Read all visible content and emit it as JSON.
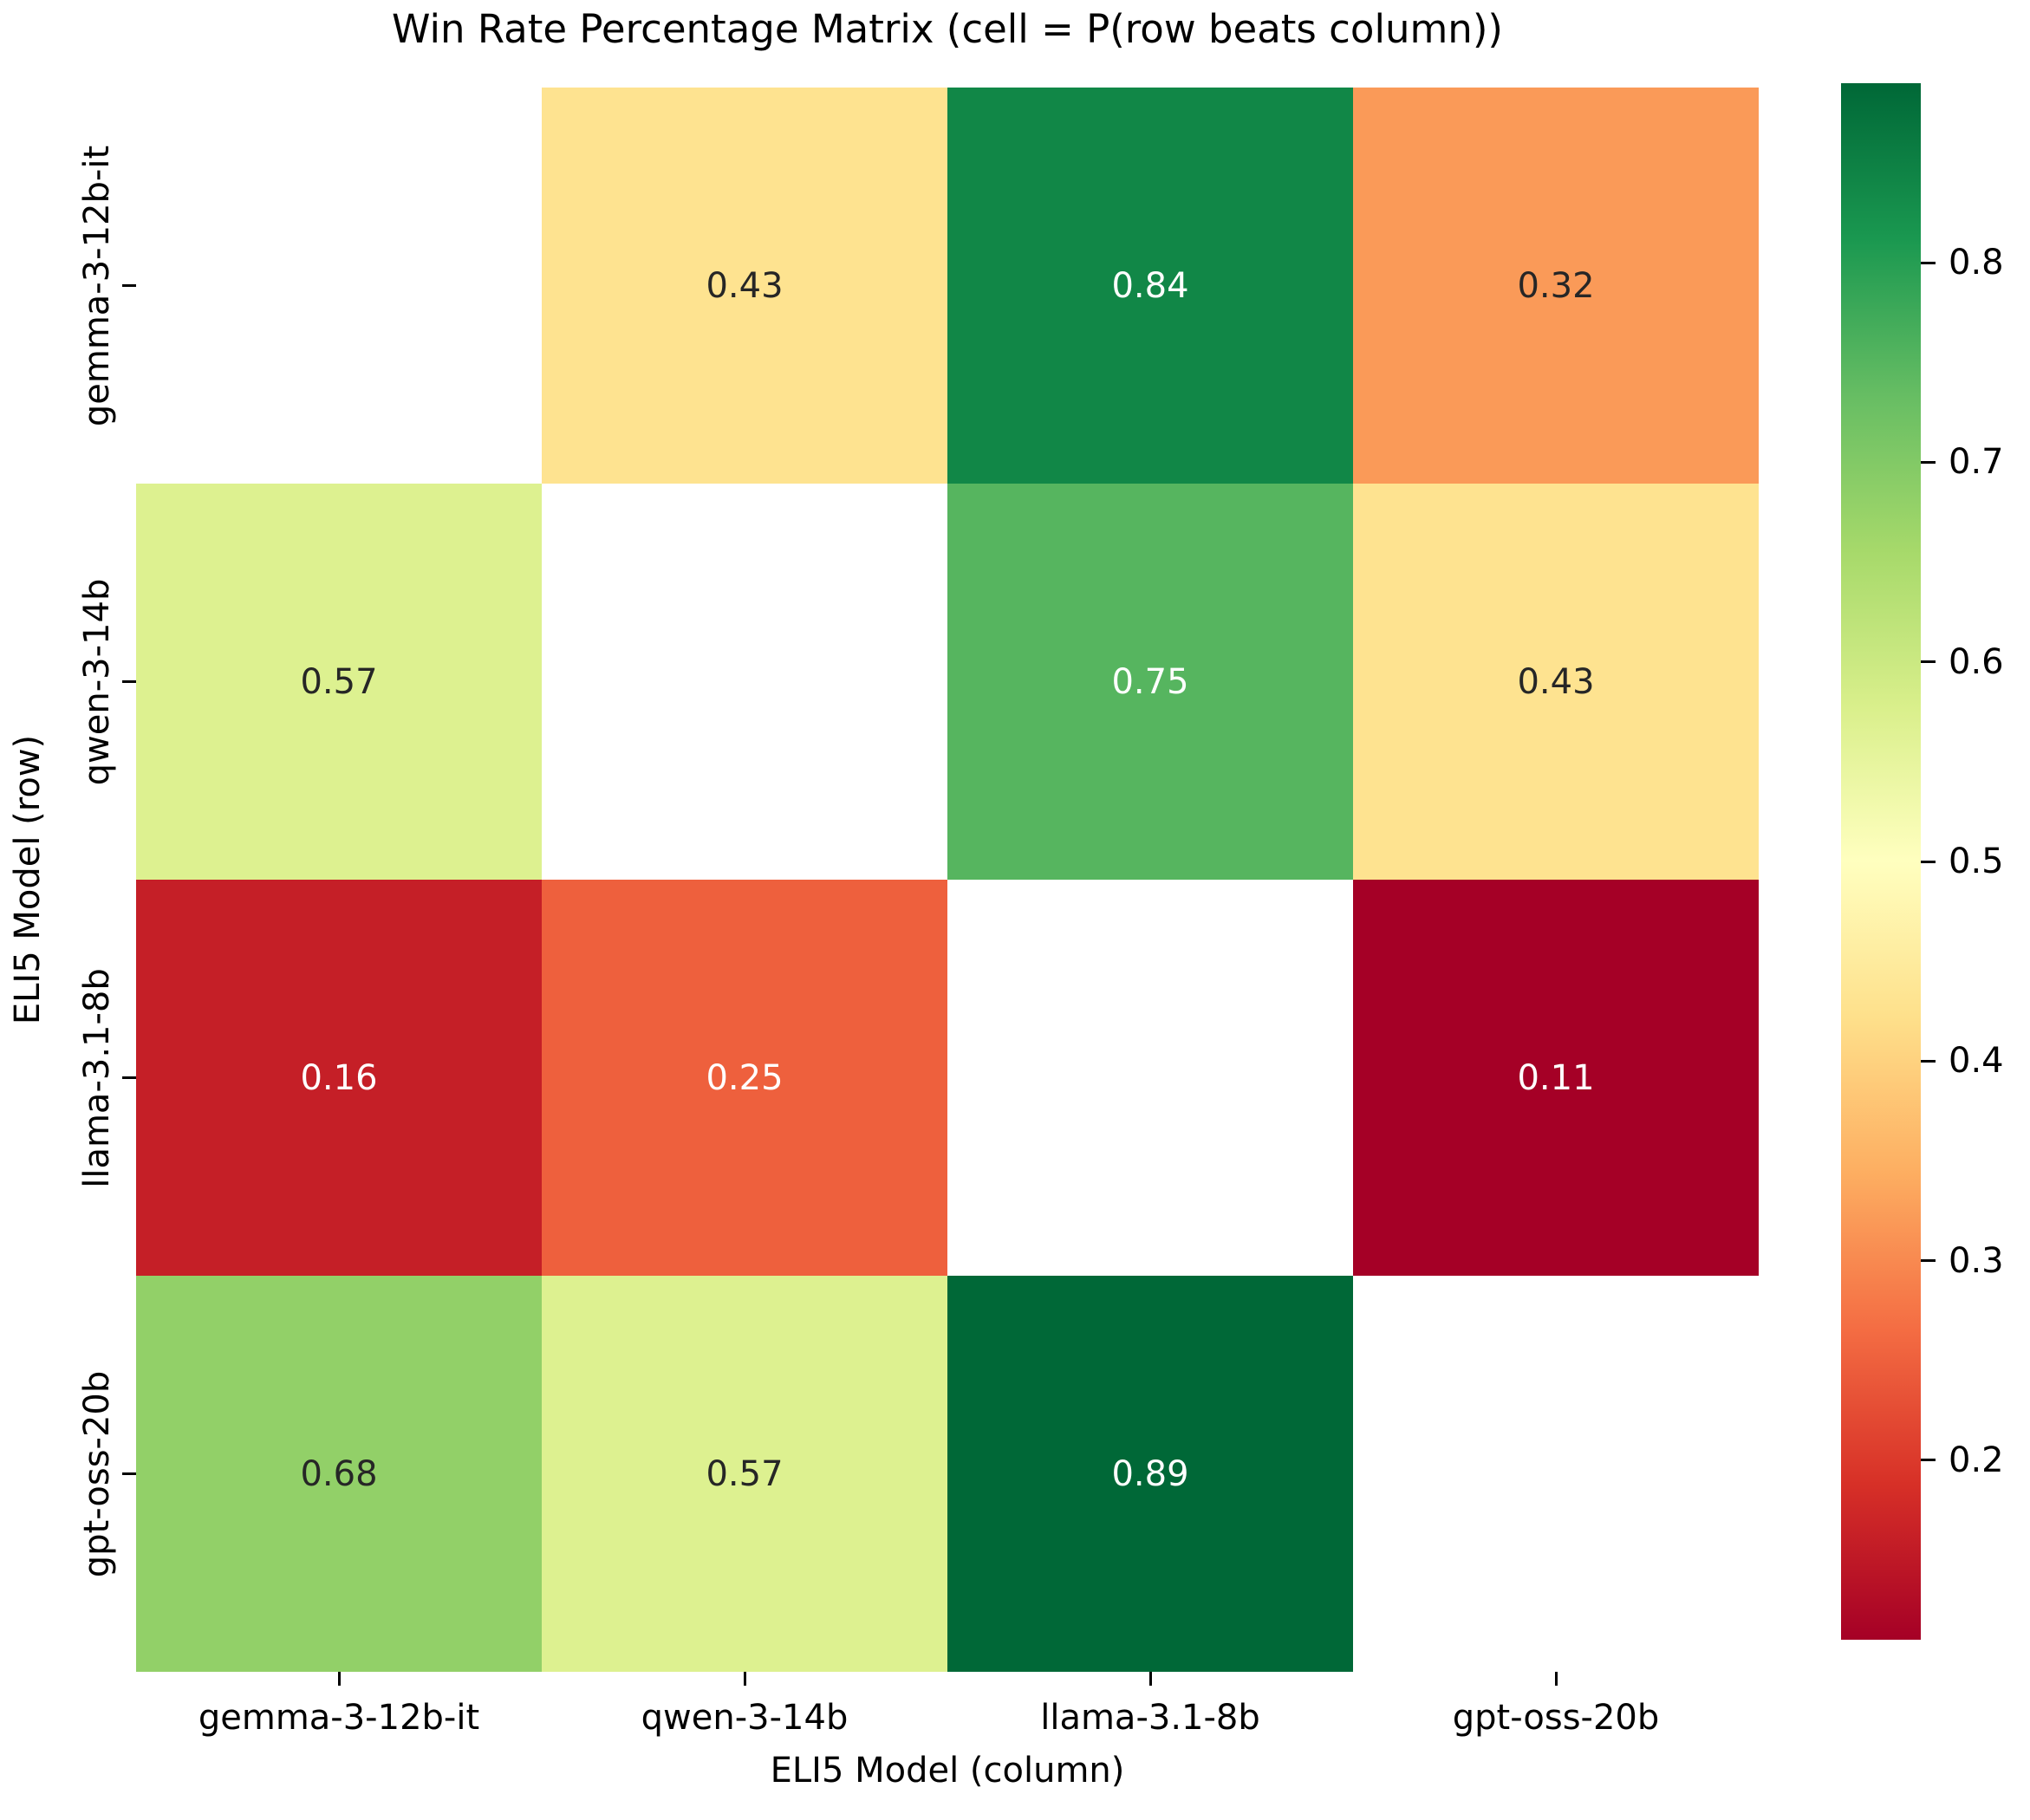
{
  "chart_data": {
    "type": "heatmap",
    "title": "Win Rate Percentage Matrix (cell = P(row beats column))",
    "xlabel": "ELI5 Model (column)",
    "ylabel": "ELI5 Model (row)",
    "rows": [
      "gemma-3-12b-it",
      "qwen-3-14b",
      "llama-3.1-8b",
      "gpt-oss-20b"
    ],
    "columns": [
      "gemma-3-12b-it",
      "qwen-3-14b",
      "llama-3.1-8b",
      "gpt-oss-20b"
    ],
    "values": [
      [
        null,
        0.43,
        0.84,
        0.32
      ],
      [
        0.57,
        null,
        0.75,
        0.43
      ],
      [
        0.16,
        0.25,
        null,
        0.11
      ],
      [
        0.68,
        0.57,
        0.89,
        null
      ]
    ],
    "value_format": "0.00",
    "colormap": "RdYlGn",
    "colormap_colors": [
      "#a50026",
      "#d73027",
      "#f46d43",
      "#fdae61",
      "#fee08b",
      "#ffffbf",
      "#d9ef8b",
      "#a6d96a",
      "#66bd63",
      "#1a9850",
      "#006837"
    ],
    "vmin": 0.11,
    "vmax": 0.89,
    "nan_color": "#ffffff",
    "grid": false,
    "legend_position": "right-colorbar",
    "colorbar_ticks": [
      0.8,
      0.7,
      0.6,
      0.5,
      0.4,
      0.3,
      0.2
    ]
  },
  "colors": {
    "background": "#ffffff",
    "annotation_dark": "#262626",
    "annotation_light": "#ffffff",
    "tick": "#000000"
  }
}
